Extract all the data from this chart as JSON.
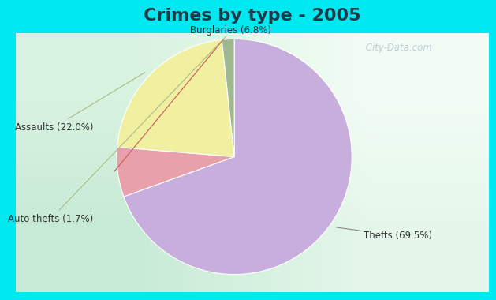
{
  "title": "Crimes by type - 2005",
  "slices": [
    {
      "label": "Thefts (69.5%)",
      "value": 69.5,
      "color": "#c8aedd"
    },
    {
      "label": "Burglaries (6.8%)",
      "value": 6.8,
      "color": "#e8a0aa"
    },
    {
      "label": "Assaults (22.0%)",
      "value": 22.0,
      "color": "#f0f0a0"
    },
    {
      "label": "Auto thefts (1.7%)",
      "value": 1.7,
      "color": "#a0b890"
    }
  ],
  "background_cyan": "#00e8f0",
  "background_chart": "#d0e8d8",
  "title_fontsize": 16,
  "label_fontsize": 8.5,
  "startangle": 90,
  "watermark": " City-Data.com"
}
